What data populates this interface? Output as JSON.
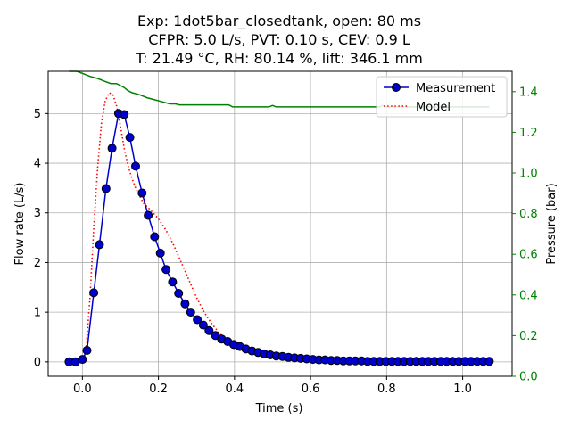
{
  "chart_data": {
    "type": "line",
    "title_lines": [
      "Exp: 1dot5bar_closedtank, open: 80 ms",
      "CFPR: 5.0 L/s, PVT: 0.10 s, CEV: 0.9 L",
      "T: 21.49 °C, RH: 80.14 %, lift: 346.1 mm"
    ],
    "xlabel": "Time (s)",
    "ylabel": "Flow rate (L/s)",
    "y2label": "Pressure (bar)",
    "xlim": [
      -0.09,
      1.13
    ],
    "ylim": [
      -0.29,
      5.85
    ],
    "y2lim": [
      0.0,
      1.5
    ],
    "xticks": [
      "0.0",
      "0.2",
      "0.4",
      "0.6",
      "0.8",
      "1.0"
    ],
    "xtick_values": [
      0.0,
      0.2,
      0.4,
      0.6,
      0.8,
      1.0
    ],
    "yticks": [
      "0",
      "1",
      "2",
      "3",
      "4",
      "5"
    ],
    "ytick_values": [
      0,
      1,
      2,
      3,
      4,
      5
    ],
    "y2ticks": [
      "0.0",
      "0.2",
      "0.4",
      "0.6",
      "0.8",
      "1.0",
      "1.2",
      "1.4"
    ],
    "y2tick_values": [
      0.0,
      0.2,
      0.4,
      0.6,
      0.8,
      1.0,
      1.2,
      1.4
    ],
    "grid": true,
    "legend_position": "top-right",
    "colors": {
      "measurement": "#0000cc",
      "measurement_marker": "#0000cc",
      "model": "#ff0000",
      "pressure": "#008000",
      "right_axis": "#008000"
    },
    "series": [
      {
        "name": "Measurement",
        "axis": "left",
        "style": "line-marker",
        "x": [
          -0.035,
          -0.018,
          0.0,
          0.012,
          0.03,
          0.045,
          0.062,
          0.078,
          0.095,
          0.11,
          0.125,
          0.14,
          0.157,
          0.173,
          0.19,
          0.205,
          0.22,
          0.237,
          0.253,
          0.27,
          0.285,
          0.302,
          0.318,
          0.333,
          0.35,
          0.366,
          0.382,
          0.398,
          0.414,
          0.43,
          0.446,
          0.462,
          0.478,
          0.494,
          0.51,
          0.526,
          0.542,
          0.558,
          0.574,
          0.59,
          0.606,
          0.622,
          0.638,
          0.654,
          0.67,
          0.686,
          0.702,
          0.718,
          0.734,
          0.75,
          0.766,
          0.782,
          0.798,
          0.814,
          0.83,
          0.846,
          0.862,
          0.878,
          0.894,
          0.91,
          0.926,
          0.942,
          0.958,
          0.974,
          0.99,
          1.006,
          1.022,
          1.038,
          1.054,
          1.07
        ],
        "y": [
          0.0,
          0.0,
          0.05,
          0.23,
          1.39,
          2.36,
          3.49,
          4.3,
          5.0,
          4.98,
          4.52,
          3.94,
          3.4,
          2.95,
          2.52,
          2.19,
          1.86,
          1.61,
          1.38,
          1.17,
          1.0,
          0.85,
          0.74,
          0.63,
          0.53,
          0.46,
          0.41,
          0.35,
          0.31,
          0.26,
          0.22,
          0.19,
          0.16,
          0.14,
          0.12,
          0.11,
          0.09,
          0.08,
          0.07,
          0.06,
          0.05,
          0.04,
          0.04,
          0.03,
          0.03,
          0.02,
          0.02,
          0.02,
          0.02,
          0.01,
          0.01,
          0.01,
          0.01,
          0.01,
          0.01,
          0.01,
          0.01,
          0.01,
          0.01,
          0.01,
          0.01,
          0.01,
          0.01,
          0.01,
          0.01,
          0.01,
          0.01,
          0.01,
          0.01,
          0.01
        ]
      },
      {
        "name": "Model",
        "axis": "left",
        "style": "dotted",
        "x": [
          -0.035,
          0.0,
          0.01,
          0.02,
          0.03,
          0.04,
          0.05,
          0.06,
          0.07,
          0.08,
          0.09,
          0.1,
          0.11,
          0.12,
          0.13,
          0.14,
          0.15,
          0.16,
          0.18,
          0.2,
          0.22,
          0.24,
          0.26,
          0.28,
          0.3,
          0.32,
          0.34,
          0.36,
          0.38,
          0.4,
          0.42,
          0.44,
          0.46,
          0.48,
          0.5,
          0.55,
          0.6,
          0.65,
          0.7,
          0.8,
          0.9,
          1.0,
          1.07
        ],
        "y": [
          0.0,
          0.0,
          0.3,
          1.3,
          2.7,
          3.9,
          4.8,
          5.25,
          5.42,
          5.38,
          5.15,
          4.75,
          4.3,
          3.95,
          3.7,
          3.5,
          3.35,
          3.2,
          3.05,
          2.88,
          2.65,
          2.35,
          2.0,
          1.65,
          1.3,
          1.0,
          0.77,
          0.58,
          0.45,
          0.35,
          0.27,
          0.2,
          0.15,
          0.11,
          0.08,
          0.05,
          0.03,
          0.02,
          0.01,
          0.01,
          0.01,
          0.01,
          0.01
        ]
      },
      {
        "name": "Pressure",
        "axis": "right",
        "style": "solid",
        "x": [
          -0.035,
          -0.015,
          0.0,
          0.02,
          0.04,
          0.06,
          0.075,
          0.09,
          0.1,
          0.11,
          0.12,
          0.13,
          0.15,
          0.17,
          0.19,
          0.21,
          0.23,
          0.245,
          0.255,
          0.27,
          0.3,
          0.35,
          0.385,
          0.395,
          0.42,
          0.45,
          0.49,
          0.5,
          0.51,
          0.52,
          0.6,
          0.7,
          0.78,
          0.79,
          0.8,
          0.85,
          1.0,
          1.07
        ],
        "y": [
          1.5,
          1.5,
          1.49,
          1.475,
          1.465,
          1.45,
          1.44,
          1.44,
          1.43,
          1.42,
          1.405,
          1.395,
          1.385,
          1.37,
          1.36,
          1.35,
          1.34,
          1.34,
          1.335,
          1.335,
          1.335,
          1.335,
          1.335,
          1.325,
          1.325,
          1.325,
          1.325,
          1.332,
          1.325,
          1.325,
          1.325,
          1.325,
          1.325,
          1.332,
          1.325,
          1.325,
          1.325,
          1.325
        ]
      }
    ],
    "legend": [
      "Measurement",
      "Model"
    ]
  }
}
